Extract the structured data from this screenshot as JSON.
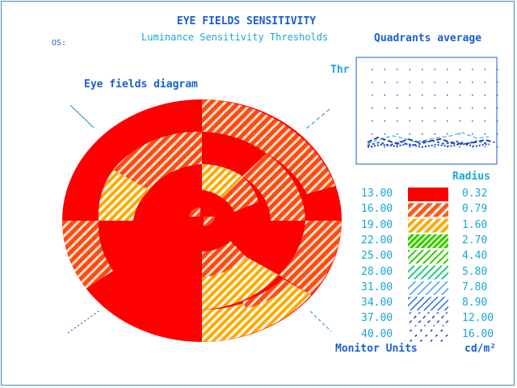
{
  "title": "EYE FIELDS SENSITIVITY",
  "subtitle": "Luminance Sensitivity Thresholds",
  "eye_label": "OS:",
  "quadrants_title": "Quadrants average",
  "diagram_title": "Eye fields diagram",
  "threshold_axis_label": "Thr",
  "legend": {
    "radius_header": "Radius",
    "threshold_footer": "Monitor Units",
    "radius_footer": "cd/m²",
    "rows": [
      {
        "threshold": "13.00",
        "radius": "0.32",
        "color": "#ff0000",
        "pattern": "solid"
      },
      {
        "threshold": "16.00",
        "radius": "0.79",
        "color": "#ff3300",
        "pattern": "hatch-red"
      },
      {
        "threshold": "19.00",
        "radius": "1.60",
        "color": "#ffaa00",
        "pattern": "hatch-orange"
      },
      {
        "threshold": "22.00",
        "radius": "2.70",
        "color": "#33cc00",
        "pattern": "hatch-green-dense"
      },
      {
        "threshold": "25.00",
        "radius": "4.40",
        "color": "#33cc00",
        "pattern": "hatch-green"
      },
      {
        "threshold": "28.00",
        "radius": "5.80",
        "color": "#22cc66",
        "pattern": "hatch-teal"
      },
      {
        "threshold": "31.00",
        "radius": "7.80",
        "color": "#4488ff",
        "pattern": "hatch-lightblue"
      },
      {
        "threshold": "34.00",
        "radius": "8.90",
        "color": "#3366ee",
        "pattern": "hatch-blue"
      },
      {
        "threshold": "37.00",
        "radius": "12.00",
        "color": "#2244cc",
        "pattern": "hatch-blue-sparse"
      },
      {
        "threshold": "40.00",
        "radius": "16.00",
        "color": "#1a2fa8",
        "pattern": "hatch-navy"
      }
    ]
  },
  "colors": {
    "frame": "#3a8fd0",
    "title": "#1a5fd0",
    "accent": "#1aa6d6",
    "red": "#ff0000",
    "orange": "#ffaa00"
  }
}
